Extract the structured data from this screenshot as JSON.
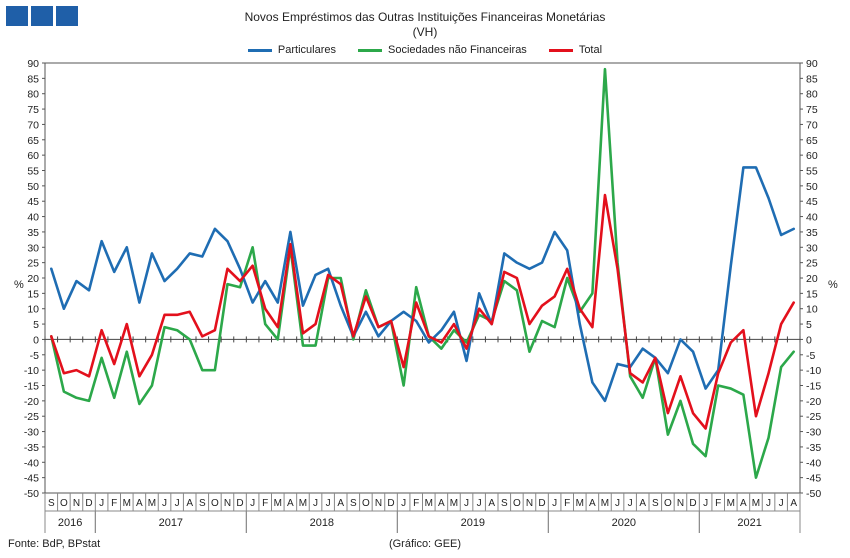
{
  "colors": {
    "particulares": "#1f6db3",
    "sociedades": "#2ca84a",
    "total": "#e3101c"
  },
  "source": "Fonte: BdP, BPstat",
  "credit": "(Gráfico: GEE)",
  "chart_data": {
    "type": "line",
    "title": "Novos Empréstimos das Outras Instituições Financeiras Monetárias",
    "subtitle": "(VH)",
    "ylabel_left": "%",
    "ylabel_right": "%",
    "ylim": [
      -50,
      90
    ],
    "yticks": [
      90,
      85,
      80,
      75,
      70,
      65,
      60,
      55,
      50,
      45,
      40,
      35,
      30,
      25,
      20,
      15,
      10,
      5,
      0,
      -5,
      -10,
      -15,
      -20,
      -25,
      -30,
      -35,
      -40,
      -45,
      -50
    ],
    "month_labels": [
      "S",
      "O",
      "N",
      "D",
      "J",
      "F",
      "M",
      "A",
      "M",
      "J",
      "J",
      "A",
      "S",
      "O",
      "N",
      "D",
      "J",
      "F",
      "M",
      "A",
      "M",
      "J",
      "J",
      "A",
      "S",
      "O",
      "N",
      "D",
      "J",
      "F",
      "M",
      "A",
      "M",
      "J",
      "J",
      "A",
      "S",
      "O",
      "N",
      "D",
      "J",
      "F",
      "M",
      "A",
      "M",
      "J",
      "J",
      "A",
      "S",
      "O",
      "N",
      "D",
      "J",
      "F",
      "M",
      "A",
      "M",
      "J",
      "J",
      "A"
    ],
    "years": [
      {
        "label": "2016",
        "start": 0,
        "count": 4
      },
      {
        "label": "2017",
        "start": 4,
        "count": 12
      },
      {
        "label": "2018",
        "start": 16,
        "count": 12
      },
      {
        "label": "2019",
        "start": 28,
        "count": 12
      },
      {
        "label": "2020",
        "start": 40,
        "count": 12
      },
      {
        "label": "2021",
        "start": 52,
        "count": 8
      }
    ],
    "legend_position": "top",
    "series": [
      {
        "name": "Particulares",
        "color": "#1f6db3",
        "values": [
          23,
          10,
          19,
          16,
          32,
          22,
          30,
          12,
          28,
          19,
          23,
          28,
          27,
          36,
          32,
          23,
          12,
          19,
          12,
          35,
          11,
          21,
          23,
          11,
          1,
          9,
          1,
          6,
          9,
          6,
          -1,
          3,
          9,
          -7,
          15,
          5,
          28,
          25,
          23,
          25,
          35,
          29,
          5,
          -14,
          -20,
          -8,
          -9,
          -3,
          -6,
          -11,
          0,
          -4,
          -16,
          -10,
          24,
          56,
          56,
          46,
          34,
          36
        ]
      },
      {
        "name": "Sociedades não Financeiras",
        "color": "#2ca84a",
        "values": [
          1,
          -17,
          -19,
          -20,
          -6,
          -19,
          -4,
          -21,
          -15,
          4,
          3,
          0,
          -10,
          -10,
          18,
          17,
          30,
          5,
          0,
          30,
          -2,
          -2,
          20,
          20,
          0,
          16,
          4,
          6,
          -15,
          17,
          1,
          -3,
          3,
          -1,
          8,
          6,
          19,
          16,
          -4,
          6,
          4,
          20,
          9,
          15,
          88,
          25,
          -12,
          -19,
          -6,
          -31,
          -20,
          -34,
          -38,
          -15,
          -16,
          -18,
          -45,
          -32,
          -9,
          -4
        ]
      },
      {
        "name": "Total",
        "color": "#e3101c",
        "values": [
          1,
          -11,
          -10,
          -12,
          3,
          -8,
          5,
          -12,
          -5,
          8,
          8,
          9,
          1,
          3,
          23,
          19,
          24,
          10,
          4,
          31,
          2,
          5,
          21,
          18,
          1,
          14,
          4,
          6,
          -9,
          12,
          1,
          -1,
          5,
          -3,
          10,
          5,
          22,
          20,
          5,
          11,
          14,
          23,
          10,
          4,
          47,
          23,
          -11,
          -14,
          -6,
          -24,
          -12,
          -24,
          -29,
          -11,
          -1,
          3,
          -25,
          -11,
          5,
          12
        ]
      }
    ]
  }
}
